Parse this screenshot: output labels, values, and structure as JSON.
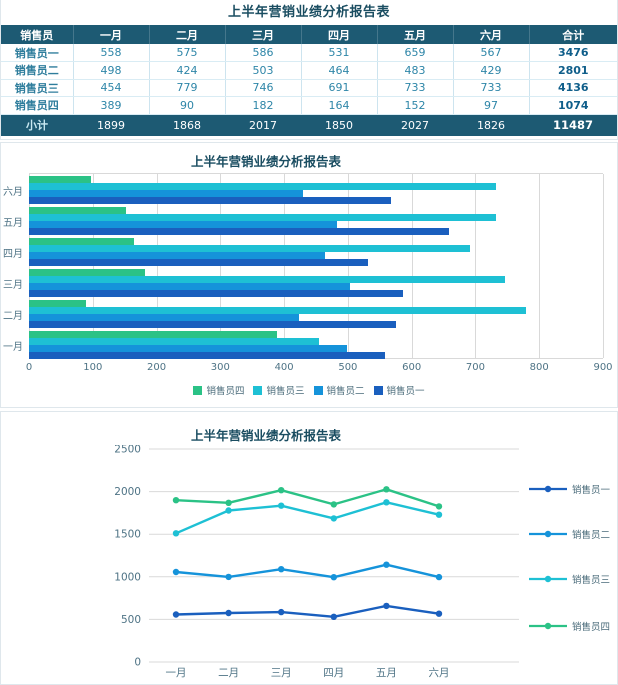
{
  "report": {
    "table_title": "上半年营销业绩分析报告表"
  },
  "colors": {
    "header_bg": "#1d5a73",
    "title_text": "#1a4d61",
    "grid": "#d9d9d9",
    "axis_text": "#4e7385",
    "series_1": "#1a5fbe",
    "series_2": "#1593da",
    "series_3": "#1ec0d4",
    "series_4": "#2bc286"
  },
  "table": {
    "columns": [
      "销售员",
      "一月",
      "二月",
      "三月",
      "四月",
      "五月",
      "六月",
      "合计"
    ],
    "rows": [
      {
        "name": "销售员一",
        "values": [
          558,
          575,
          586,
          531,
          659,
          567
        ],
        "total": 3476
      },
      {
        "name": "销售员二",
        "values": [
          498,
          424,
          503,
          464,
          483,
          429
        ],
        "total": 2801
      },
      {
        "name": "销售员三",
        "values": [
          454,
          779,
          746,
          691,
          733,
          733
        ],
        "total": 4136
      },
      {
        "name": "销售员四",
        "values": [
          389,
          90,
          182,
          164,
          152,
          97
        ],
        "total": 1074
      }
    ],
    "footer": {
      "label": "小计",
      "values": [
        1899,
        1868,
        2017,
        1850,
        2027,
        1826
      ],
      "total": 11487
    }
  },
  "chart_data": [
    {
      "type": "bar",
      "orientation": "horizontal",
      "title": "上半年营销业绩分析报告表",
      "categories": [
        "一月",
        "二月",
        "三月",
        "四月",
        "五月",
        "六月"
      ],
      "category_display_order_top_to_bottom": [
        "六月",
        "五月",
        "四月",
        "三月",
        "二月",
        "一月"
      ],
      "series": [
        {
          "name": "销售员四",
          "color": "#2bc286",
          "values": [
            389,
            90,
            182,
            164,
            152,
            97
          ]
        },
        {
          "name": "销售员三",
          "color": "#1ec0d4",
          "values": [
            454,
            779,
            746,
            691,
            733,
            733
          ]
        },
        {
          "name": "销售员二",
          "color": "#1593da",
          "values": [
            498,
            424,
            503,
            464,
            483,
            429
          ]
        },
        {
          "name": "销售员一",
          "color": "#1a5fbe",
          "values": [
            558,
            575,
            586,
            531,
            659,
            567
          ]
        }
      ],
      "xlabel": "",
      "ylabel": "",
      "xlim": [
        0,
        900
      ],
      "xticks": [
        0,
        100,
        200,
        300,
        400,
        500,
        600,
        700,
        800,
        900
      ],
      "grid": true,
      "legend_position": "bottom"
    },
    {
      "type": "line",
      "stacked": true,
      "title": "上半年营销业绩分析报告表",
      "x": [
        "一月",
        "二月",
        "三月",
        "四月",
        "五月",
        "六月"
      ],
      "series": [
        {
          "name": "销售员一",
          "color": "#1a5fbe",
          "values": [
            558,
            575,
            586,
            531,
            659,
            567
          ],
          "plotted_cumulative": [
            558,
            575,
            586,
            531,
            659,
            567
          ]
        },
        {
          "name": "销售员二",
          "color": "#1593da",
          "values": [
            498,
            424,
            503,
            464,
            483,
            429
          ],
          "plotted_cumulative": [
            1056,
            999,
            1089,
            995,
            1142,
            996
          ]
        },
        {
          "name": "销售员三",
          "color": "#1ec0d4",
          "values": [
            454,
            779,
            746,
            691,
            733,
            733
          ],
          "plotted_cumulative": [
            1510,
            1778,
            1835,
            1686,
            1875,
            1729
          ]
        },
        {
          "name": "销售员四",
          "color": "#2bc286",
          "values": [
            389,
            90,
            182,
            164,
            152,
            97
          ],
          "plotted_cumulative": [
            1899,
            1868,
            2017,
            1850,
            2027,
            1826
          ]
        }
      ],
      "xlabel": "",
      "ylabel": "",
      "ylim": [
        0,
        2500
      ],
      "yticks": [
        0,
        500,
        1000,
        1500,
        2000,
        2500
      ],
      "grid": true,
      "legend_position": "right"
    }
  ]
}
